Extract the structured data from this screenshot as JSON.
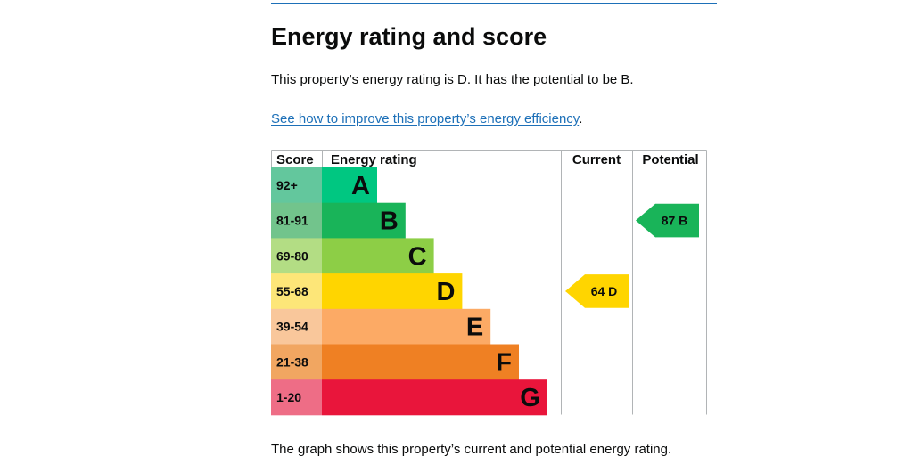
{
  "page": {
    "heading": "Energy rating and score",
    "summary": "This property’s energy rating is D. It has the potential to be B.",
    "improve_link": "See how to improve this property’s energy efficiency",
    "improve_link_suffix": ".",
    "footer_text": "The graph shows this property’s current and potential energy rating."
  },
  "chart_data": {
    "type": "bar",
    "headers": {
      "score": "Score",
      "rating": "Energy rating",
      "current": "Current",
      "potential": "Potential"
    },
    "bands": [
      {
        "letter": "A",
        "range": "92+",
        "min_score": 92,
        "bar_color": "#00c781",
        "score_bg": "#63c79d"
      },
      {
        "letter": "B",
        "range": "81-91",
        "min_score": 81,
        "bar_color": "#19b459",
        "score_bg": "#72c48c"
      },
      {
        "letter": "C",
        "range": "69-80",
        "min_score": 69,
        "bar_color": "#8dce46",
        "score_bg": "#b3dd84"
      },
      {
        "letter": "D",
        "range": "55-68",
        "min_score": 55,
        "bar_color": "#ffd500",
        "score_bg": "#fde678"
      },
      {
        "letter": "E",
        "range": "39-54",
        "min_score": 39,
        "bar_color": "#fcaa65",
        "score_bg": "#f9c79b"
      },
      {
        "letter": "F",
        "range": "21-38",
        "min_score": 21,
        "bar_color": "#ef8023",
        "score_bg": "#f1a661"
      },
      {
        "letter": "G",
        "range": "1-20",
        "min_score": 1,
        "bar_color": "#e9153b",
        "score_bg": "#ee6d86"
      }
    ],
    "current": {
      "score": 64,
      "band": "D",
      "label": "64  D",
      "color": "#ffd500"
    },
    "potential": {
      "score": 87,
      "band": "B",
      "label": "87  B",
      "color": "#19b459"
    }
  }
}
